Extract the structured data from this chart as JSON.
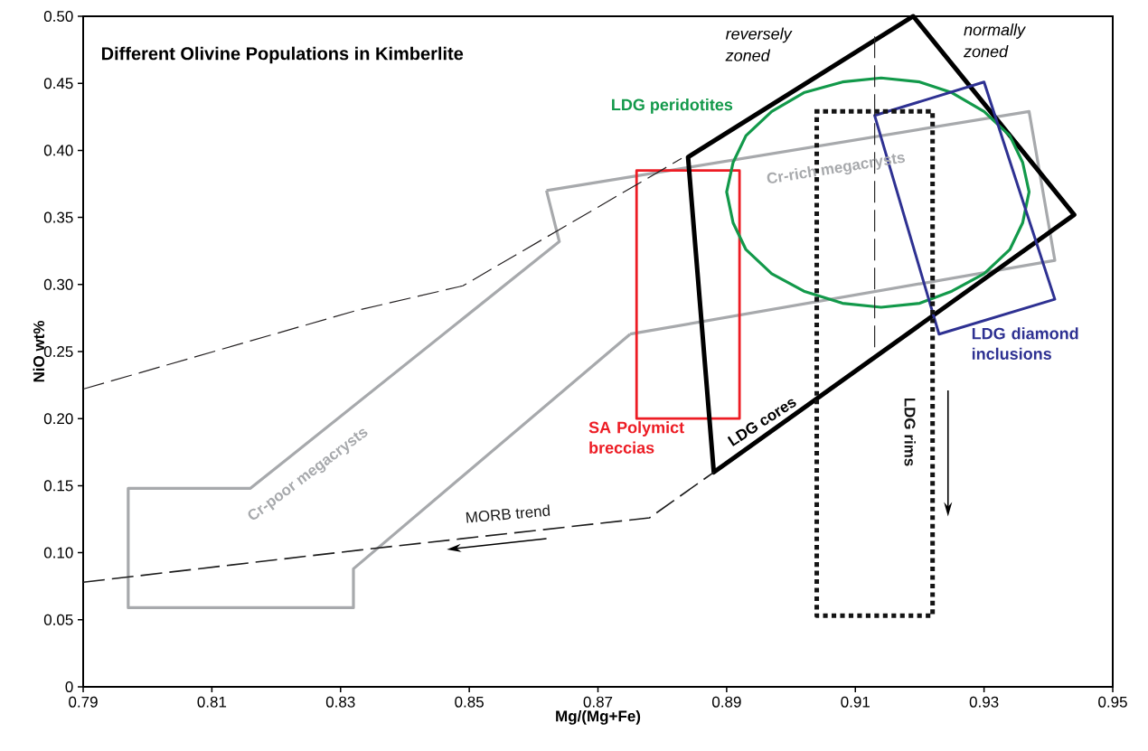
{
  "chart_data": {
    "type": "line",
    "title": "Different Olivine Populations in Kimberlite",
    "xlabel": "Mg/(Mg+Fe)",
    "ylabel": "NiO wt%",
    "xlim": [
      0.79,
      0.95
    ],
    "ylim": [
      0,
      0.5
    ],
    "xticks": [
      0.79,
      0.81,
      0.83,
      0.85,
      0.87,
      0.89,
      0.91,
      0.93,
      0.95
    ],
    "yticks": [
      0,
      0.05,
      {
        "value": 0.1,
        "label": "0.10"
      },
      0.15,
      {
        "value": 0.2,
        "label": "0.20"
      },
      0.25,
      {
        "value": 0.3,
        "label": "0.30"
      },
      0.35,
      {
        "value": 0.4,
        "label": "0.40"
      },
      0.45,
      {
        "value": 0.5,
        "label": "0.50"
      }
    ],
    "marker": "none",
    "grid": false,
    "annotations": [
      "reversely zoned",
      "normally zoned"
    ],
    "series": [
      {
        "name": "Cr-poor megacrysts",
        "color": "#a7a9ac",
        "line_style": "solid",
        "x": [
          0.875,
          0.832,
          0.832,
          0.797,
          0.797,
          0.816,
          0.864,
          0.862
        ],
        "values": [
          0.263,
          0.088,
          0.059,
          0.059,
          0.148,
          0.148,
          0.332,
          0.37
        ]
      },
      {
        "name": "Cr-rich megacrysts",
        "color": "#a7a9ac",
        "line_style": "solid",
        "x": [
          0.862,
          0.937,
          0.941,
          0.875
        ],
        "values": [
          0.37,
          0.429,
          0.318,
          0.263
        ]
      },
      {
        "name": "SA Polymict breccias",
        "color": "#ed1c24",
        "line_style": "solid",
        "x": [
          0.876,
          0.892,
          0.892,
          0.876,
          0.876,
          0.892
        ],
        "values": [
          0.385,
          0.385,
          0.2,
          0.2,
          0.385,
          0.385
        ]
      },
      {
        "name": "LDG cores",
        "color": "#000000",
        "line_style": "solid",
        "x": [
          0.884,
          0.919,
          0.944,
          0.888,
          0.884,
          0.919
        ],
        "values": [
          0.395,
          0.5,
          0.352,
          0.16,
          0.395,
          0.5
        ]
      },
      {
        "name": "LDG peridotites",
        "color": "#12994a",
        "line_style": "solid",
        "x": [
          0.937,
          0.936,
          0.934,
          0.93,
          0.925,
          0.92,
          0.914,
          0.908,
          0.902,
          0.897,
          0.893,
          0.891,
          0.89,
          0.891,
          0.893,
          0.897,
          0.902,
          0.908,
          0.914,
          0.92,
          0.925,
          0.93,
          0.934,
          0.936,
          0.937,
          0.936
        ],
        "values": [
          0.369,
          0.391,
          0.411,
          0.429,
          0.443,
          0.451,
          0.454,
          0.451,
          0.443,
          0.429,
          0.411,
          0.391,
          0.369,
          0.346,
          0.326,
          0.308,
          0.295,
          0.286,
          0.283,
          0.286,
          0.295,
          0.308,
          0.326,
          0.346,
          0.369,
          0.391
        ]
      },
      {
        "name": "LDG diamond inclusions",
        "color": "#2e3192",
        "line_style": "solid",
        "x": [
          0.913,
          0.93,
          0.941,
          0.923,
          0.913,
          0.93
        ],
        "values": [
          0.426,
          0.451,
          0.289,
          0.263,
          0.426,
          0.451
        ]
      },
      {
        "name": "LDG rims",
        "color": "#141414",
        "line_style": "dotted",
        "x": [
          0.904,
          0.922,
          0.922,
          0.904,
          0.904,
          0.922
        ],
        "values": [
          0.429,
          0.429,
          0.053,
          0.053,
          0.429,
          0.429
        ]
      },
      {
        "color": "#231f20",
        "line_style": "dashed",
        "x": [
          0.79,
          0.832,
          0.849,
          0.883
        ],
        "values": [
          0.222,
          0.28,
          0.299,
          0.394
        ]
      },
      {
        "name": "MORB trend",
        "color": "#1c1c1c",
        "line_style": "dashed",
        "x": [
          0.79,
          0.833,
          0.878,
          0.888
        ],
        "values": [
          0.078,
          0.102,
          0.126,
          0.16
        ]
      },
      {
        "color": "#2a2a2a",
        "line_style": "dashed",
        "x": [
          0.913,
          0.913
        ],
        "values": [
          0.485,
          0.251
        ]
      }
    ]
  }
}
